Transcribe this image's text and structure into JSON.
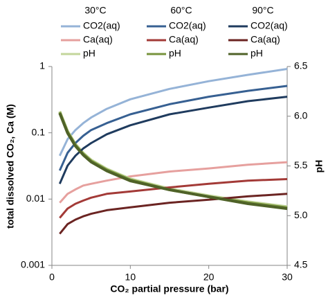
{
  "chart_data": {
    "type": "line",
    "x_label": "CO₂ partial pressure (bar)",
    "y_label": "total dissolved CO₂, Ca (M)",
    "y2_label": "pH",
    "legend_columns": [
      "30°C",
      "60°C",
      "90°C"
    ],
    "x": [
      1,
      2,
      3,
      4,
      5,
      7,
      10,
      15,
      20,
      25,
      30
    ],
    "xlim": [
      0,
      30
    ],
    "xticks": [
      0,
      10,
      20,
      30
    ],
    "ylim": [
      0.001,
      1
    ],
    "yticks": [
      0.001,
      0.01,
      0.1,
      1
    ],
    "ylog": true,
    "y2lim": [
      4.5,
      6.5
    ],
    "y2ticks": [
      {
        "value": 4.5,
        "label": "4.5"
      },
      {
        "value": 5,
        "label": "5.0"
      },
      {
        "value": 5.5,
        "label": "5.5"
      },
      {
        "value": 6,
        "label": "6.0"
      },
      {
        "value": 6.5,
        "label": "6.5"
      }
    ],
    "series": [
      {
        "name": "CO2(aq)",
        "color": "#95b3d7",
        "values": [
          0.045,
          0.08,
          0.11,
          0.14,
          0.17,
          0.23,
          0.32,
          0.46,
          0.6,
          0.75,
          0.92
        ]
      },
      {
        "name": "Ca(aq)",
        "color": "#e6a09e",
        "values": [
          0.0088,
          0.012,
          0.014,
          0.016,
          0.017,
          0.019,
          0.022,
          0.026,
          0.029,
          0.033,
          0.036
        ]
      },
      {
        "name": "pH",
        "color": "#c3d69b",
        "axis": "y2",
        "values": [
          6.05,
          5.85,
          5.72,
          5.63,
          5.56,
          5.47,
          5.37,
          5.27,
          5.2,
          5.14,
          5.09
        ]
      },
      {
        "name": "CO2(aq)",
        "color": "#376092",
        "values": [
          0.027,
          0.05,
          0.07,
          0.09,
          0.11,
          0.14,
          0.19,
          0.27,
          0.35,
          0.43,
          0.51
        ]
      },
      {
        "name": "Ca(aq)",
        "color": "#a33a37",
        "values": [
          0.0052,
          0.0072,
          0.0085,
          0.0095,
          0.0105,
          0.012,
          0.013,
          0.015,
          0.017,
          0.019,
          0.02
        ]
      },
      {
        "name": "pH",
        "color": "#77933c",
        "axis": "y2",
        "values": [
          6.04,
          5.84,
          5.71,
          5.62,
          5.55,
          5.46,
          5.36,
          5.26,
          5.19,
          5.13,
          5.08
        ]
      },
      {
        "name": "CO2(aq)",
        "color": "#1f3b5e",
        "values": [
          0.017,
          0.032,
          0.045,
          0.058,
          0.07,
          0.095,
          0.13,
          0.19,
          0.24,
          0.3,
          0.35
        ]
      },
      {
        "name": "Ca(aq)",
        "color": "#6b2422",
        "values": [
          0.003,
          0.0042,
          0.0049,
          0.0055,
          0.006,
          0.0068,
          0.0075,
          0.0088,
          0.0098,
          0.011,
          0.012
        ]
      },
      {
        "name": "pH",
        "color": "#4f6228",
        "axis": "y2",
        "values": [
          6.03,
          5.83,
          5.7,
          5.61,
          5.54,
          5.45,
          5.35,
          5.26,
          5.19,
          5.12,
          5.07
        ]
      }
    ]
  }
}
